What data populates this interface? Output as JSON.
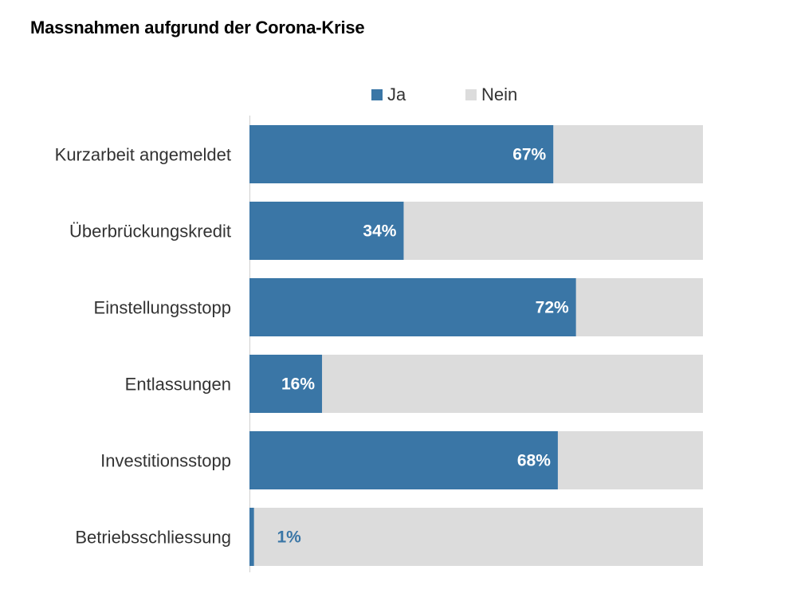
{
  "chart_data": {
    "type": "bar",
    "orientation": "horizontal",
    "stacked": true,
    "title": "Massnahmen aufgrund der Corona-Krise",
    "categories": [
      "Kurzarbeit angemeldet",
      "Überbrückungskredit",
      "Einstellungsstopp",
      "Entlassungen",
      "Investitionsstopp",
      "Betriebsschliessung"
    ],
    "series": [
      {
        "name": "Ja",
        "values": [
          67,
          34,
          72,
          16,
          68,
          1
        ],
        "color": "#3a76a6"
      },
      {
        "name": "Nein",
        "values": [
          33,
          66,
          28,
          84,
          32,
          99
        ],
        "color": "#dcdcdc"
      }
    ],
    "data_labels": [
      "67%",
      "34%",
      "72%",
      "16%",
      "68%",
      "1%"
    ],
    "xlim": [
      0,
      100
    ],
    "grid": false,
    "legend_position": "top"
  }
}
